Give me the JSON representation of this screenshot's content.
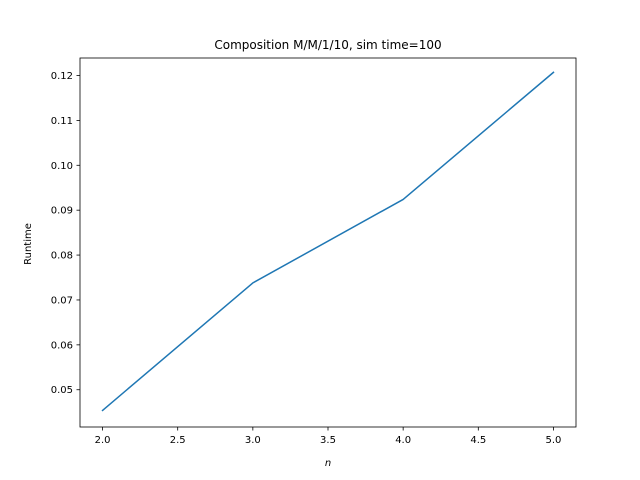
{
  "chart_data": {
    "type": "line",
    "title": "Composition M/M/1/10, sim time=100",
    "xlabel": "n",
    "ylabel": "Runtime",
    "xlim": [
      1.85,
      5.15
    ],
    "ylim": [
      0.0417,
      0.1239
    ],
    "xticks": [
      2.0,
      2.5,
      3.0,
      3.5,
      4.0,
      4.5,
      5.0
    ],
    "xtick_labels": [
      "2.0",
      "2.5",
      "3.0",
      "3.5",
      "4.0",
      "4.5",
      "5.0"
    ],
    "yticks": [
      0.05,
      0.06,
      0.07,
      0.08,
      0.09,
      0.1,
      0.11,
      0.12
    ],
    "ytick_labels": [
      "0.05",
      "0.06",
      "0.07",
      "0.08",
      "0.09",
      "0.10",
      "0.11",
      "0.12"
    ],
    "grid": false,
    "series": [
      {
        "x": [
          2,
          3,
          4,
          5
        ],
        "values": [
          0.0454,
          0.0738,
          0.0924,
          0.1207
        ],
        "color": "#1f77b4"
      }
    ]
  }
}
